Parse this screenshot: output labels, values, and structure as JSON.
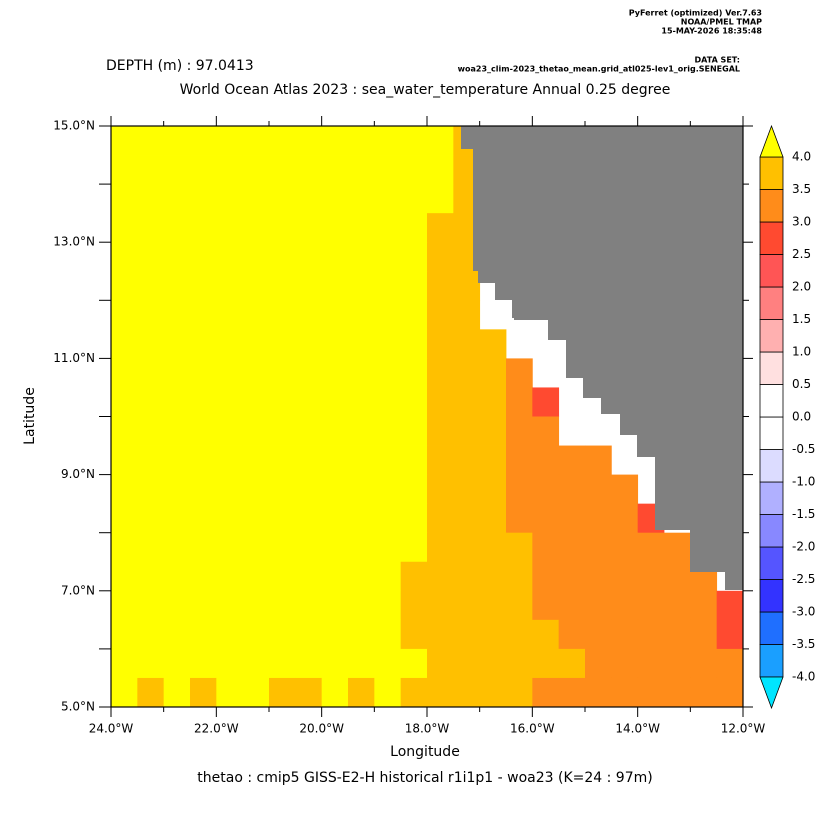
{
  "chart_data": {
    "type": "heatmap",
    "header": [
      "PyFerret (optimized) Ver.7.63",
      "NOAA/PMEL TMAP",
      "15-MAY-2026 18:35:48"
    ],
    "dataset_label": "DATA SET:",
    "dataset": "woa23_clim-2023_thetao_mean.grid_atl025-lev1_orig.SENEGAL",
    "subtitle": "DEPTH (m) : 97.0413",
    "title": "World Ocean Atlas 2023 : sea_water_temperature Annual  0.25 degree",
    "xlabel": "Longitude",
    "ylabel": "Latitude",
    "footer": "thetao : cmip5 GISS-E2-H historical r1i1p1 - woa23  (K=24 : 97m)",
    "xlim": [
      -24,
      -12
    ],
    "ylim": [
      5,
      15
    ],
    "xticks": [
      {
        "value": -24,
        "label": "24.0°W"
      },
      {
        "value": -22,
        "label": "22.0°W"
      },
      {
        "value": -20,
        "label": "20.0°W"
      },
      {
        "value": -18,
        "label": "18.0°W"
      },
      {
        "value": -16,
        "label": "16.0°W"
      },
      {
        "value": -14,
        "label": "14.0°W"
      },
      {
        "value": -12,
        "label": "12.0°W"
      }
    ],
    "xminorticks": [
      -23,
      -21,
      -19,
      -17,
      -15,
      -13
    ],
    "yticks": [
      {
        "value": 5,
        "label": "5.0°N"
      },
      {
        "value": 7,
        "label": "7.0°N"
      },
      {
        "value": 9,
        "label": "9.0°N"
      },
      {
        "value": 11,
        "label": "11.0°N"
      },
      {
        "value": 13,
        "label": "13.0°N"
      },
      {
        "value": 15,
        "label": "15.0°N"
      }
    ],
    "yminorticks": [
      6,
      8,
      10,
      12,
      14
    ],
    "x": [
      -23.75,
      -23.25,
      -22.75,
      -22.25,
      -21.75,
      -21.25,
      -20.75,
      -20.25,
      -19.75,
      -19.25,
      -18.75,
      -18.25,
      -17.75,
      -17.25,
      -16.75,
      -16.25,
      -15.75,
      -15.25,
      -14.75,
      -14.25,
      -13.75,
      -13.25,
      -12.75,
      -12.25
    ],
    "y": [
      14.75,
      14.25,
      13.75,
      13.25,
      12.75,
      12.25,
      11.75,
      11.25,
      10.75,
      10.25,
      9.75,
      9.25,
      8.75,
      8.25,
      7.75,
      7.25,
      6.75,
      6.25,
      5.75,
      5.25
    ],
    "z": [
      [
        4.3,
        4.3,
        4.3,
        4.3,
        4.3,
        4.3,
        4.3,
        4.3,
        4.3,
        4.3,
        4.3,
        4.3,
        4.3,
        3.8,
        null,
        null,
        null,
        null,
        null,
        null,
        null,
        null,
        null,
        null
      ],
      [
        4.3,
        4.3,
        4.3,
        4.3,
        4.3,
        4.3,
        4.3,
        4.3,
        4.3,
        4.3,
        4.3,
        4.3,
        4.3,
        3.8,
        null,
        null,
        null,
        null,
        null,
        null,
        null,
        null,
        null,
        null
      ],
      [
        4.3,
        4.3,
        4.3,
        4.3,
        4.3,
        4.3,
        4.3,
        4.3,
        4.3,
        4.3,
        4.3,
        4.3,
        4.3,
        3.8,
        null,
        null,
        null,
        null,
        null,
        null,
        null,
        null,
        null,
        null
      ],
      [
        4.3,
        4.3,
        4.3,
        4.3,
        4.3,
        4.3,
        4.3,
        4.3,
        4.3,
        4.3,
        4.3,
        4.3,
        3.8,
        3.8,
        null,
        null,
        null,
        null,
        null,
        null,
        null,
        null,
        null,
        null
      ],
      [
        4.3,
        4.3,
        4.3,
        4.3,
        4.3,
        4.3,
        4.3,
        4.3,
        4.3,
        4.3,
        4.3,
        4.3,
        3.8,
        3.8,
        null,
        null,
        null,
        null,
        null,
        null,
        null,
        null,
        null,
        null
      ],
      [
        4.3,
        4.3,
        4.3,
        4.3,
        4.3,
        4.3,
        4.3,
        4.3,
        4.3,
        4.3,
        4.3,
        4.3,
        3.8,
        3.8,
        null,
        null,
        null,
        null,
        null,
        null,
        null,
        null,
        null,
        null
      ],
      [
        4.3,
        4.3,
        4.3,
        4.3,
        4.3,
        4.3,
        4.3,
        4.3,
        4.3,
        4.3,
        4.3,
        4.3,
        3.8,
        3.8,
        null,
        null,
        null,
        null,
        null,
        null,
        null,
        null,
        null,
        null
      ],
      [
        4.3,
        4.3,
        4.3,
        4.3,
        4.3,
        4.3,
        4.3,
        4.3,
        4.3,
        4.3,
        4.3,
        4.3,
        3.8,
        3.8,
        3.8,
        null,
        null,
        null,
        null,
        null,
        null,
        null,
        null,
        null
      ],
      [
        4.3,
        4.3,
        4.3,
        4.3,
        4.3,
        4.3,
        4.3,
        4.3,
        4.3,
        4.3,
        4.3,
        4.3,
        3.8,
        3.8,
        3.8,
        3.2,
        null,
        null,
        null,
        null,
        null,
        null,
        null,
        null
      ],
      [
        4.3,
        4.3,
        4.3,
        4.3,
        4.3,
        4.3,
        4.3,
        4.3,
        4.3,
        4.3,
        4.3,
        4.3,
        3.8,
        3.8,
        3.8,
        3.2,
        2.8,
        null,
        null,
        null,
        null,
        null,
        null,
        null
      ],
      [
        4.3,
        4.3,
        4.3,
        4.3,
        4.3,
        4.3,
        4.3,
        4.3,
        4.3,
        4.3,
        4.3,
        4.3,
        3.8,
        3.8,
        3.8,
        3.2,
        3.2,
        null,
        null,
        null,
        null,
        null,
        null,
        null
      ],
      [
        4.3,
        4.3,
        4.3,
        4.3,
        4.3,
        4.3,
        4.3,
        4.3,
        4.3,
        4.3,
        4.3,
        4.3,
        3.8,
        3.8,
        3.8,
        3.2,
        3.2,
        3.2,
        3.2,
        null,
        null,
        null,
        null,
        null
      ],
      [
        4.3,
        4.3,
        4.3,
        4.3,
        4.3,
        4.3,
        4.3,
        4.3,
        4.3,
        4.3,
        4.3,
        4.3,
        3.8,
        3.8,
        3.8,
        3.2,
        3.2,
        3.2,
        3.2,
        3.2,
        null,
        null,
        null,
        null
      ],
      [
        4.3,
        4.3,
        4.3,
        4.3,
        4.3,
        4.3,
        4.3,
        4.3,
        4.3,
        4.3,
        4.3,
        4.3,
        3.8,
        3.8,
        3.8,
        3.2,
        3.2,
        3.2,
        3.2,
        3.2,
        2.8,
        null,
        null,
        null
      ],
      [
        4.3,
        4.3,
        4.3,
        4.3,
        4.3,
        4.3,
        4.3,
        4.3,
        4.3,
        4.3,
        4.3,
        4.3,
        3.8,
        3.8,
        3.8,
        3.8,
        3.2,
        3.2,
        3.2,
        3.2,
        3.2,
        3.2,
        null,
        null
      ],
      [
        4.3,
        4.3,
        4.3,
        4.3,
        4.3,
        4.3,
        4.3,
        4.3,
        4.3,
        4.3,
        4.3,
        3.8,
        3.8,
        3.8,
        3.8,
        3.8,
        3.2,
        3.2,
        3.2,
        3.2,
        3.2,
        3.2,
        3.2,
        null
      ],
      [
        4.3,
        4.3,
        4.3,
        4.3,
        4.3,
        4.3,
        4.3,
        4.3,
        4.3,
        4.3,
        4.3,
        3.8,
        3.8,
        3.8,
        3.8,
        3.8,
        3.2,
        3.2,
        3.2,
        3.2,
        3.2,
        3.2,
        3.2,
        2.8
      ],
      [
        4.3,
        4.3,
        4.3,
        4.3,
        4.3,
        4.3,
        4.3,
        4.3,
        4.3,
        4.3,
        4.3,
        3.8,
        3.8,
        3.8,
        3.8,
        3.8,
        3.8,
        3.2,
        3.2,
        3.2,
        3.2,
        3.2,
        3.2,
        2.8
      ],
      [
        4.3,
        4.3,
        4.3,
        4.3,
        4.3,
        4.3,
        4.3,
        4.3,
        4.3,
        4.3,
        4.3,
        4.3,
        3.8,
        3.8,
        3.8,
        3.8,
        3.8,
        3.8,
        3.2,
        3.2,
        3.2,
        3.2,
        3.2,
        3.2
      ],
      [
        4.3,
        3.8,
        4.3,
        3.8,
        4.3,
        4.3,
        3.8,
        3.8,
        4.3,
        3.8,
        4.3,
        3.8,
        3.8,
        3.8,
        3.8,
        3.8,
        3.2,
        3.2,
        3.2,
        3.2,
        3.2,
        3.2,
        3.2,
        3.2
      ]
    ],
    "levels": [
      {
        "value": -4,
        "label": "-4.0"
      },
      -3.5,
      {
        "value": -3,
        "label": "-3.0"
      },
      -2.5,
      {
        "value": -2,
        "label": "-2.0"
      },
      -1.5,
      {
        "value": -1,
        "label": "-1.0"
      },
      -0.5,
      {
        "value": 0,
        "label": "0.0"
      },
      0.5,
      {
        "value": 1,
        "label": "1.0"
      },
      1.5,
      {
        "value": 2,
        "label": "2.0"
      },
      2.5,
      {
        "value": 3,
        "label": "3.0"
      },
      3.5,
      {
        "value": 4,
        "label": "4.0"
      }
    ],
    "colors": [
      "#00e5ff",
      "#1a9fff",
      "#1f6fff",
      "#3333ff",
      "#5555ff",
      "#8888ff",
      "#b0b0ff",
      "#dcdcff",
      "#ffffff",
      "#ffffff",
      "#ffe0e0",
      "#ffb0b0",
      "#ff8080",
      "#ff5555",
      "#ff4a30",
      "#ff8c1a",
      "#ffc000",
      "#ffff00"
    ],
    "land_color": "#808080"
  }
}
